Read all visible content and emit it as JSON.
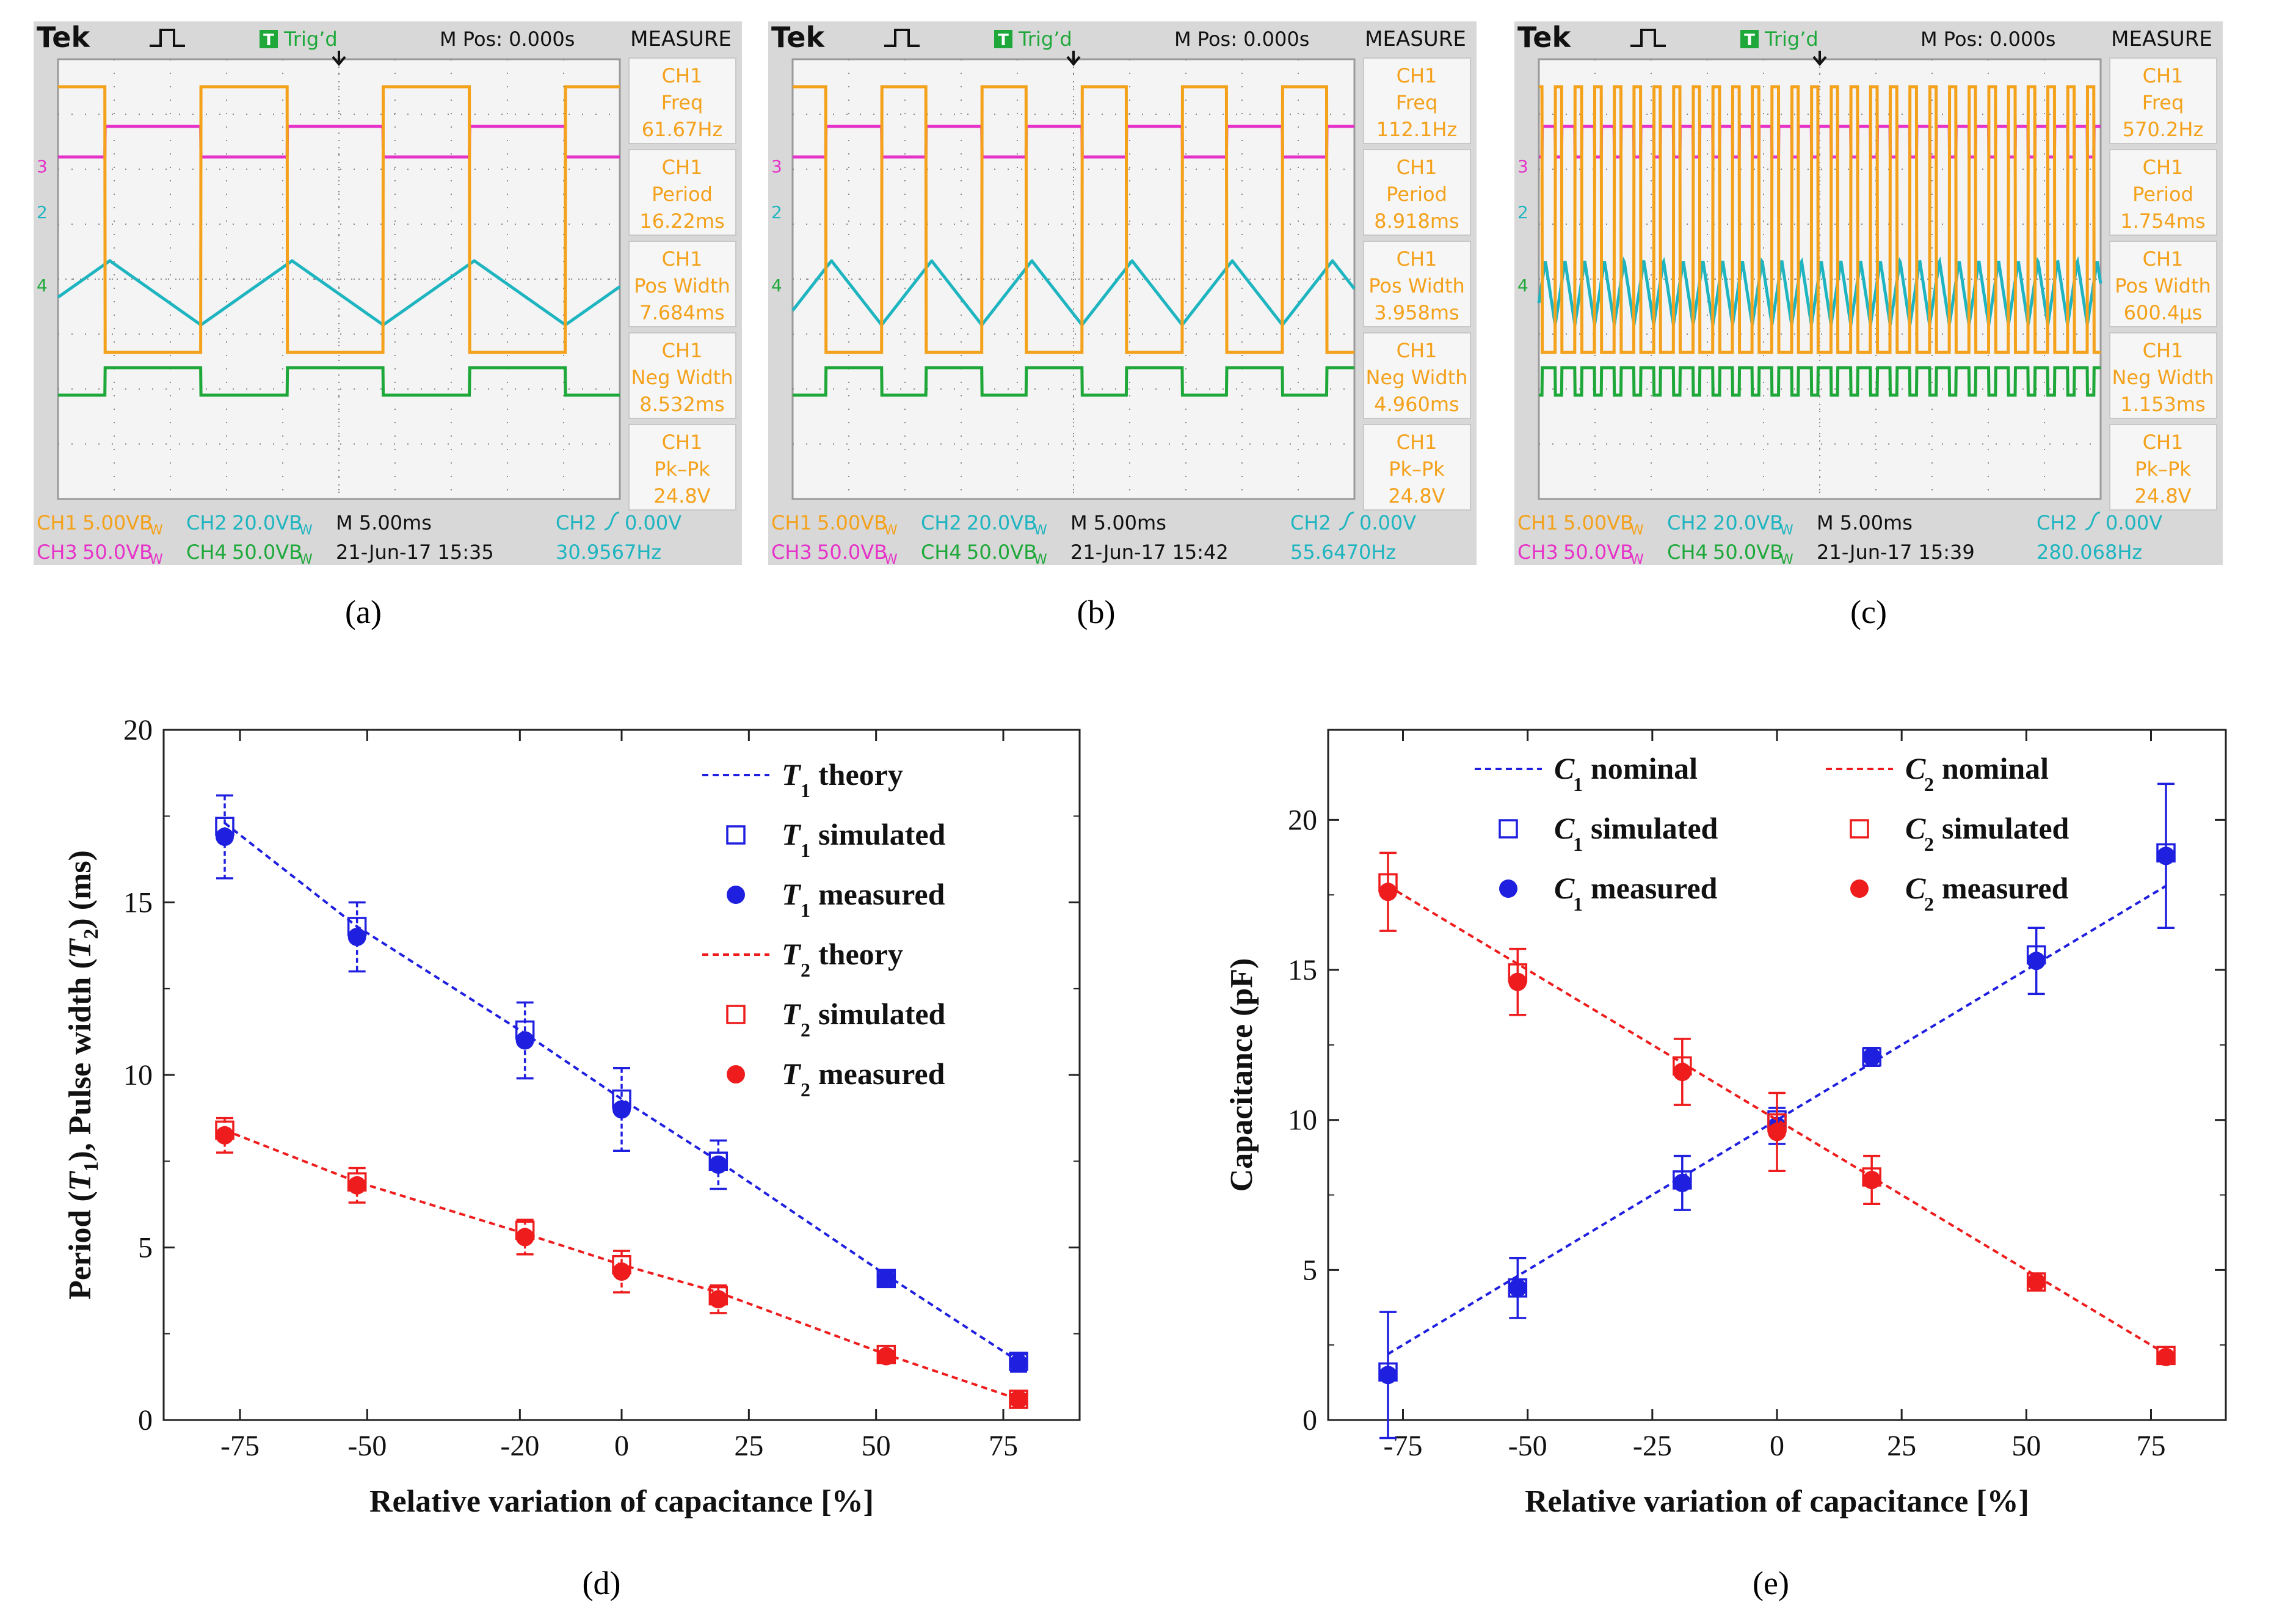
{
  "figure": {
    "panels": [
      {
        "id": "a",
        "caption": "(a)",
        "color": "#f4a11b"
      },
      {
        "id": "b",
        "caption": "(b)",
        "color": "#f4a11b"
      },
      {
        "id": "c",
        "caption": "(c)",
        "color": "#f4a11b"
      }
    ],
    "captions": {
      "d": "(d)",
      "e": "(e)"
    }
  },
  "scope_common": {
    "brand": "Tek",
    "trigger_state": "Trig’d",
    "trigger_badge": "T",
    "mpos": "M Pos: 0.000s",
    "measure_title": "MEASURE",
    "ch_marker_3": "3",
    "ch_marker_2": "2",
    "ch_marker_4": "4",
    "ch1_scale_label": "CH1",
    "ch1_scale": "5.00VB",
    "ch2_scale_label": "CH2",
    "ch2_scale": "20.0VB",
    "ch3_scale_label": "CH3",
    "ch3_scale": "50.0VB",
    "ch4_scale_label": "CH4",
    "ch4_scale": "50.0VB",
    "bw_suffix": "W",
    "timebase": "M 5.00ms",
    "trigger_source": "CH2",
    "trigger_level": "0.00V",
    "colors": {
      "ch1": "#f4a11b",
      "ch2": "#1fb5c0",
      "ch3": "#e632c8",
      "ch4": "#1ea83a",
      "grid": "#8a8a8a",
      "screen": "#f4f4f4",
      "frame": "#d8d8d8",
      "tbadge": "#1ea83a"
    }
  },
  "scopes": [
    {
      "id": "a",
      "measurements": [
        {
          "name": "CH1",
          "param": "Freq",
          "value": "61.67Hz"
        },
        {
          "name": "CH1",
          "param": "Period",
          "value": "16.22ms"
        },
        {
          "name": "CH1",
          "param": "Pos Width",
          "value": "7.684ms"
        },
        {
          "name": "CH1",
          "param": "Neg Width",
          "value": "8.532ms"
        },
        {
          "name": "CH1",
          "param": "Pk–Pk",
          "value": "24.8V"
        }
      ],
      "date": "21-Jun-17 15:35",
      "trig_freq": "30.9567Hz",
      "ch1_period_ms": 16.22,
      "ch1_pos_width_ms": 7.684
    },
    {
      "id": "b",
      "measurements": [
        {
          "name": "CH1",
          "param": "Freq",
          "value": "112.1Hz"
        },
        {
          "name": "CH1",
          "param": "Period",
          "value": "8.918ms"
        },
        {
          "name": "CH1",
          "param": "Pos Width",
          "value": "3.958ms"
        },
        {
          "name": "CH1",
          "param": "Neg Width",
          "value": "4.960ms"
        },
        {
          "name": "CH1",
          "param": "Pk–Pk",
          "value": "24.8V"
        }
      ],
      "date": "21-Jun-17 15:42",
      "trig_freq": "55.6470Hz",
      "ch1_period_ms": 8.918,
      "ch1_pos_width_ms": 3.958
    },
    {
      "id": "c",
      "measurements": [
        {
          "name": "CH1",
          "param": "Freq",
          "value": "570.2Hz"
        },
        {
          "name": "CH1",
          "param": "Period",
          "value": "1.754ms"
        },
        {
          "name": "CH1",
          "param": "Pos Width",
          "value": "600.4µs"
        },
        {
          "name": "CH1",
          "param": "Neg Width",
          "value": "1.153ms"
        },
        {
          "name": "CH1",
          "param": "Pk–Pk",
          "value": "24.8V"
        }
      ],
      "date": "21-Jun-17 15:39",
      "trig_freq": "280.068Hz",
      "ch1_period_ms": 1.754,
      "ch1_pos_width_ms": 0.6004
    }
  ],
  "chart_data": [
    {
      "id": "d",
      "type": "scatter",
      "title": "",
      "xlabel": "Relative variation of capacitance [%]",
      "ylabel": "Period (T1), Pulse width (T2) (ms)",
      "ylabel_parts": {
        "a": "Period (",
        "v1": "T",
        "s1": "1",
        "b": "), Pulse width (",
        "v2": "T",
        "s2": "2",
        "c": ") (ms)"
      },
      "xlim": [
        -90,
        90
      ],
      "ylim": [
        0,
        20
      ],
      "xticks": [
        -75,
        -50,
        -20,
        0,
        25,
        50,
        75
      ],
      "xtick_labels": [
        "-75",
        "-50",
        "-20",
        "0",
        "25",
        "50",
        "75"
      ],
      "yticks": [
        0,
        5,
        10,
        15,
        20
      ],
      "ytick_labels": [
        "0",
        "5",
        "10",
        "15",
        "20"
      ],
      "legend": [
        {
          "var": "T",
          "sub": "1",
          "text": "theory",
          "style": "line",
          "color": "#1f1fe0"
        },
        {
          "var": "T",
          "sub": "1",
          "text": "simulated",
          "style": "open-square",
          "color": "#1f1fe0"
        },
        {
          "var": "T",
          "sub": "1",
          "text": "measured",
          "style": "filled-circle",
          "color": "#1f1fe0"
        },
        {
          "var": "T",
          "sub": "2",
          "text": "theory",
          "style": "line",
          "color": "#ee1c1c"
        },
        {
          "var": "T",
          "sub": "2",
          "text": "simulated",
          "style": "open-square",
          "color": "#ee1c1c"
        },
        {
          "var": "T",
          "sub": "2",
          "text": "measured",
          "style": "filled-circle",
          "color": "#ee1c1c"
        }
      ],
      "series": [
        {
          "name": "T1 theory",
          "kind": "line",
          "color": "#1f1fe0",
          "x": [
            -78,
            -52,
            -19,
            0,
            19,
            52,
            78
          ],
          "y": [
            17.3,
            14.3,
            11.2,
            9.3,
            7.5,
            4.2,
            1.7
          ]
        },
        {
          "name": "T1 simulated",
          "kind": "square",
          "color": "#1f1fe0",
          "x": [
            -78,
            -52,
            -19,
            0,
            19,
            52,
            78
          ],
          "y": [
            17.2,
            14.3,
            11.3,
            9.3,
            7.5,
            4.1,
            1.7
          ]
        },
        {
          "name": "T1 measured",
          "kind": "circle",
          "color": "#1f1fe0",
          "x": [
            -78,
            -52,
            -19,
            0,
            19,
            52,
            78
          ],
          "y": [
            16.9,
            14.0,
            11.0,
            9.0,
            7.4,
            4.1,
            1.65
          ],
          "err": [
            1.2,
            1.0,
            1.1,
            1.2,
            0.7,
            0.2,
            0.25
          ]
        },
        {
          "name": "T2 theory",
          "kind": "line",
          "color": "#ee1c1c",
          "x": [
            -78,
            -52,
            -19,
            0,
            19,
            52,
            78
          ],
          "y": [
            8.4,
            6.9,
            5.4,
            4.5,
            3.7,
            1.9,
            0.6
          ]
        },
        {
          "name": "T2 simulated",
          "kind": "square",
          "color": "#ee1c1c",
          "x": [
            -78,
            -52,
            -19,
            0,
            19,
            52,
            78
          ],
          "y": [
            8.4,
            6.9,
            5.5,
            4.5,
            3.6,
            1.9,
            0.6
          ]
        },
        {
          "name": "T2 measured",
          "kind": "circle",
          "color": "#ee1c1c",
          "x": [
            -78,
            -52,
            -19,
            0,
            19,
            52,
            78
          ],
          "y": [
            8.25,
            6.8,
            5.3,
            4.3,
            3.5,
            1.85,
            0.6
          ],
          "err": [
            0.5,
            0.5,
            0.5,
            0.6,
            0.4,
            0.15,
            0.15
          ]
        }
      ]
    },
    {
      "id": "e",
      "type": "scatter",
      "title": "",
      "xlabel": "Relative variation of capacitance [%]",
      "ylabel": "Capacitance (pF)",
      "xlim": [
        -90,
        90
      ],
      "ylim": [
        0,
        23
      ],
      "xticks": [
        -75,
        -50,
        -25,
        0,
        25,
        50,
        75
      ],
      "xtick_labels": [
        "-75",
        "-50",
        "-25",
        "0",
        "25",
        "50",
        "75"
      ],
      "yticks": [
        0,
        5,
        10,
        15,
        20
      ],
      "ytick_labels": [
        "0",
        "5",
        "10",
        "15",
        "20"
      ],
      "legend": [
        {
          "var": "C",
          "sub": "1",
          "text": "nominal",
          "style": "line",
          "color": "#1f1fe0"
        },
        {
          "var": "C",
          "sub": "1",
          "text": "simulated",
          "style": "open-square",
          "color": "#1f1fe0"
        },
        {
          "var": "C",
          "sub": "1",
          "text": "measured",
          "style": "filled-circle",
          "color": "#1f1fe0"
        },
        {
          "var": "C",
          "sub": "2",
          "text": "nominal",
          "style": "line",
          "color": "#ee1c1c"
        },
        {
          "var": "C",
          "sub": "2",
          "text": "simulated",
          "style": "open-square",
          "color": "#ee1c1c"
        },
        {
          "var": "C",
          "sub": "2",
          "text": "measured",
          "style": "filled-circle",
          "color": "#ee1c1c"
        }
      ],
      "series": [
        {
          "name": "C1 nominal",
          "kind": "line",
          "color": "#1f1fe0",
          "x": [
            -78,
            -52,
            -19,
            0,
            19,
            52,
            78
          ],
          "y": [
            2.2,
            4.8,
            8.1,
            10.0,
            11.9,
            15.2,
            17.8
          ]
        },
        {
          "name": "C1 simulated",
          "kind": "square",
          "color": "#1f1fe0",
          "x": [
            -78,
            -52,
            -19,
            0,
            19,
            52,
            78
          ],
          "y": [
            1.6,
            4.4,
            8.0,
            10.0,
            12.1,
            15.5,
            18.9
          ]
        },
        {
          "name": "C1 measured",
          "kind": "circle",
          "color": "#1f1fe0",
          "x": [
            -78,
            -52,
            -19,
            0,
            19,
            52,
            78
          ],
          "y": [
            1.5,
            4.4,
            7.9,
            9.8,
            12.1,
            15.3,
            18.8
          ],
          "err": [
            2.1,
            1.0,
            0.9,
            0.6,
            0.3,
            1.1,
            2.4
          ]
        },
        {
          "name": "C2 nominal",
          "kind": "line",
          "color": "#ee1c1c",
          "x": [
            -78,
            -52,
            -19,
            0,
            19,
            52,
            78
          ],
          "y": [
            17.8,
            15.2,
            11.9,
            10.0,
            8.1,
            4.8,
            2.2
          ]
        },
        {
          "name": "C2 simulated",
          "kind": "square",
          "color": "#ee1c1c",
          "x": [
            -78,
            -52,
            -19,
            0,
            19,
            52,
            78
          ],
          "y": [
            17.9,
            14.9,
            11.8,
            9.9,
            8.1,
            4.6,
            2.15
          ]
        },
        {
          "name": "C2 measured",
          "kind": "circle",
          "color": "#ee1c1c",
          "x": [
            -78,
            -52,
            -19,
            0,
            19,
            52,
            78
          ],
          "y": [
            17.6,
            14.6,
            11.6,
            9.6,
            8.0,
            4.6,
            2.1
          ],
          "err": [
            1.3,
            1.1,
            1.1,
            1.3,
            0.8,
            0.15,
            0.15
          ]
        }
      ]
    }
  ]
}
